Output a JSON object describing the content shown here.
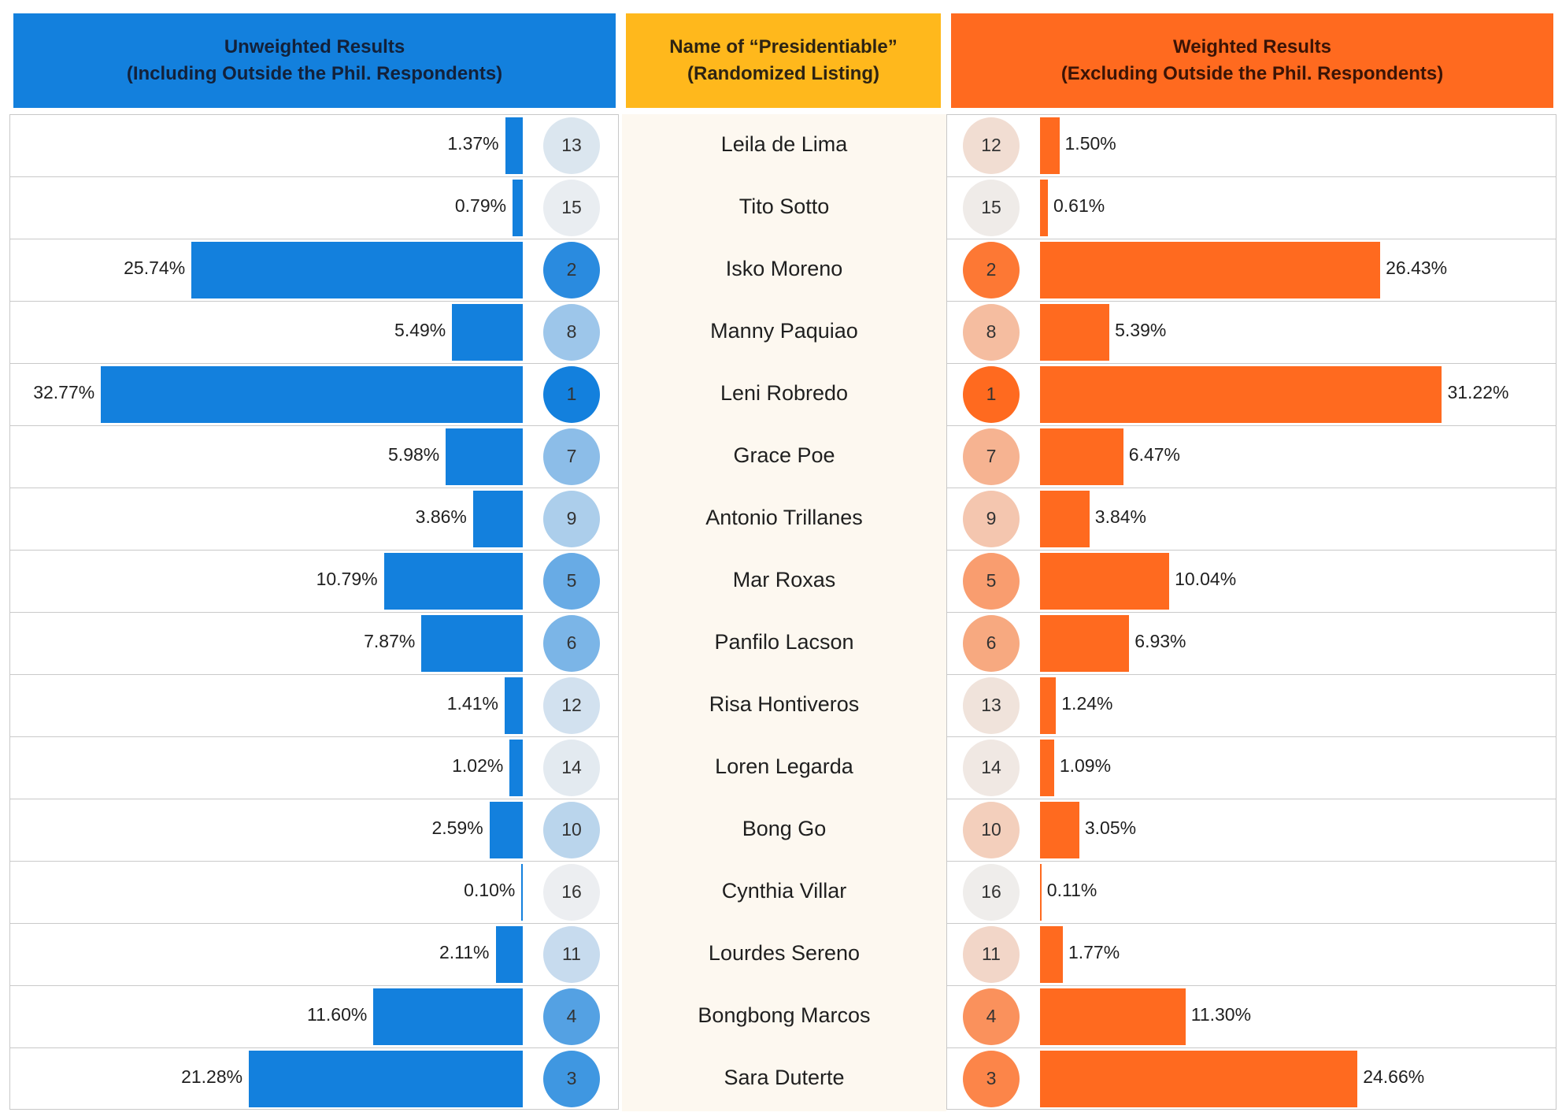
{
  "headers": {
    "left_line1": "Unweighted Results",
    "left_line2": "(Including Outside the Phil. Respondents)",
    "middle_line1": "Name of “Presidentiable”",
    "middle_line2": "(Randomized Listing)",
    "right_line1": "Weighted Results",
    "right_line2": "(Excluding Outside the Phil. Respondents)"
  },
  "colors": {
    "unweighted": "#1380dd",
    "weighted": "#ff6a1f",
    "names_header": "#ffb81c"
  },
  "chart_data": {
    "type": "bar",
    "categories": [
      "Leila de Lima",
      "Tito Sotto",
      "Isko Moreno",
      "Manny Paquiao",
      "Leni Robredo",
      "Grace Poe",
      "Antonio Trillanes",
      "Mar Roxas",
      "Panfilo Lacson",
      "Risa Hontiveros",
      "Loren Legarda",
      "Bong Go",
      "Cynthia Villar",
      "Lourdes Sereno",
      "Bongbong Marcos",
      "Sara Duterte"
    ],
    "series": [
      {
        "name": "Unweighted Results (Including Outside the Phil. Respondents)",
        "values": [
          1.37,
          0.79,
          25.74,
          5.49,
          32.77,
          5.98,
          3.86,
          10.79,
          7.87,
          1.41,
          1.02,
          2.59,
          0.1,
          2.11,
          11.6,
          21.28
        ],
        "labels": [
          "1.37%",
          "0.79%",
          "25.74%",
          "5.49%",
          "32.77%",
          "5.98%",
          "3.86%",
          "10.79%",
          "7.87%",
          "1.41%",
          "1.02%",
          "2.59%",
          "0.10%",
          "2.11%",
          "11.60%",
          "21.28%"
        ],
        "ranks": [
          13,
          15,
          2,
          8,
          1,
          7,
          9,
          5,
          6,
          12,
          14,
          10,
          16,
          11,
          4,
          3
        ]
      },
      {
        "name": "Weighted Results (Excluding Outside the Phil. Respondents)",
        "values": [
          1.5,
          0.61,
          26.43,
          5.39,
          31.22,
          6.47,
          3.84,
          10.04,
          6.93,
          1.24,
          1.09,
          3.05,
          0.11,
          1.77,
          11.3,
          24.66
        ],
        "labels": [
          "1.50%",
          "0.61%",
          "26.43%",
          "5.39%",
          "31.22%",
          "6.47%",
          "3.84%",
          "10.04%",
          "6.93%",
          "1.24%",
          "1.09%",
          "3.05%",
          "0.11%",
          "1.77%",
          "11.30%",
          "24.66%"
        ],
        "ranks": [
          12,
          15,
          2,
          8,
          1,
          7,
          9,
          5,
          6,
          13,
          14,
          10,
          16,
          11,
          4,
          3
        ]
      }
    ],
    "orientation": "horizontal, mirrored (left series extends leftward, right series extends rightward)",
    "legend": "none"
  }
}
